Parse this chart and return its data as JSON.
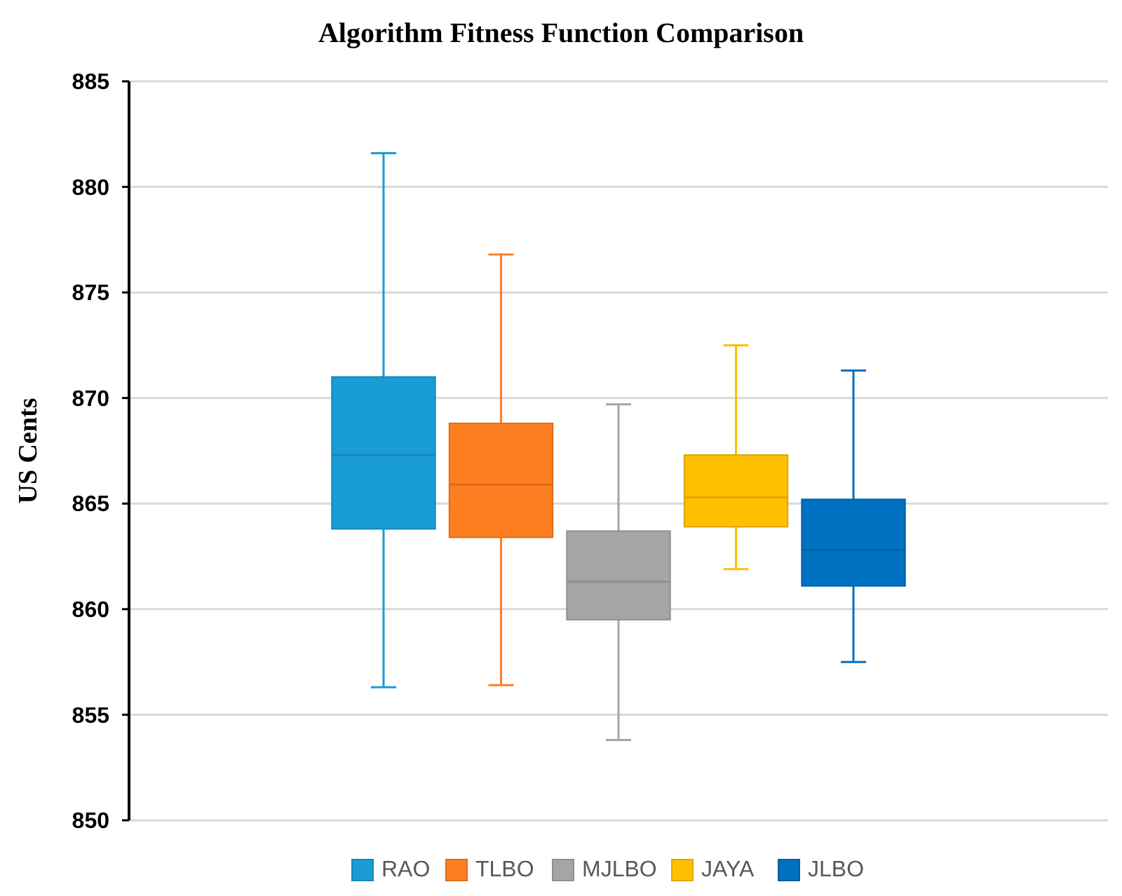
{
  "chart_data": {
    "type": "box",
    "title": "Algorithm Fitness Function Comparison",
    "ylabel": "US Cents",
    "categories": [
      null
    ],
    "series": [
      {
        "name": "RAO",
        "color": "#1a9cd6",
        "boxes": [
          {
            "low": 856.3,
            "q1": 863.8,
            "median": 867.3,
            "q3": 871.0,
            "high": 881.6
          }
        ]
      },
      {
        "name": "TLBO",
        "color": "#fd7f22",
        "boxes": [
          {
            "low": 856.4,
            "q1": 863.4,
            "median": 865.9,
            "q3": 868.8,
            "high": 876.8
          }
        ]
      },
      {
        "name": "MJLBO",
        "color": "#a5a5a5",
        "boxes": [
          {
            "low": 853.8,
            "q1": 859.5,
            "median": 861.3,
            "q3": 863.7,
            "high": 869.7
          }
        ]
      },
      {
        "name": "JAYA",
        "color": "#ffc000",
        "boxes": [
          {
            "low": 861.9,
            "q1": 863.9,
            "median": 865.3,
            "q3": 867.3,
            "high": 872.5
          }
        ]
      },
      {
        "name": "JLBO",
        "color": "#0070c0",
        "boxes": [
          {
            "low": 857.5,
            "q1": 861.1,
            "median": 862.8,
            "q3": 865.2,
            "high": 871.3
          }
        ]
      }
    ],
    "ylim": [
      850,
      885
    ],
    "yticks": [
      850,
      855,
      860,
      865,
      870,
      875,
      880,
      885
    ],
    "grid": "y",
    "legend": "bottom"
  }
}
